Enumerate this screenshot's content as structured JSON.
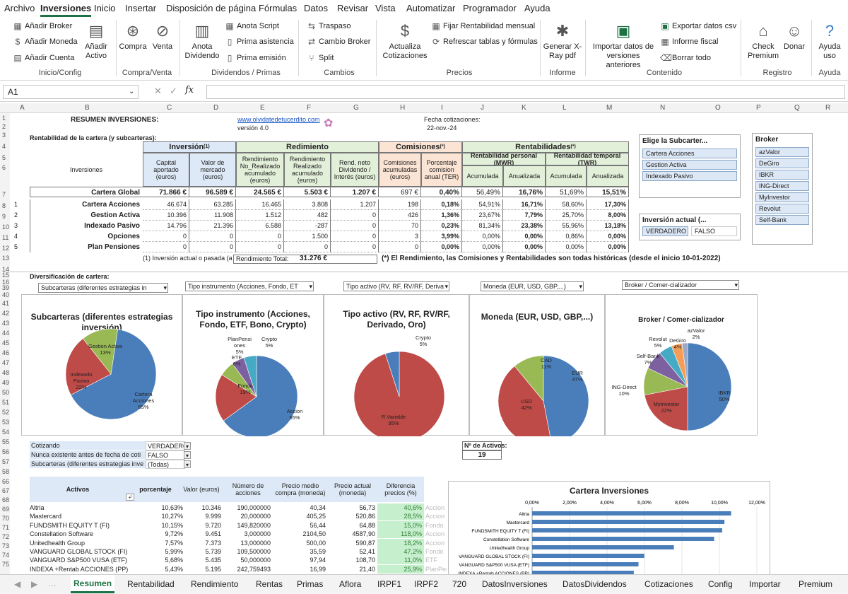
{
  "menu": [
    "Archivo",
    "Inversiones",
    "Inicio",
    "Insertar",
    "Disposición de página",
    "Fórmulas",
    "Datos",
    "Revisar",
    "Vista",
    "Automatizar",
    "Programador",
    "Ayuda"
  ],
  "ribbon": {
    "anadir_broker": "Añadir Broker",
    "anadir_moneda": "Añadir Moneda",
    "anadir_cuenta": "Añadir Cuenta",
    "anadir_activo": "Añadir Activo",
    "g_inicio": "Inicio/Config",
    "compra": "Compra",
    "venta": "Venta",
    "g_compraventa": "Compra/Venta",
    "anota_dividendo": "Anota Dividendo",
    "anota_script": "Anota Script",
    "prima_asistencia": "Prima asistencia",
    "prima_emision": "Prima emisión",
    "g_dividendos": "Dividendos / Primas",
    "traspaso": "Traspaso",
    "cambio_broker": "Cambio Broker",
    "split": "Split",
    "g_cambios": "Cambios",
    "actualiza": "Actualiza Cotizaciones",
    "fijar": "Fijar Rentabilidad mensual",
    "refrescar": "Refrescar tablas y fórmulas",
    "g_precios": "Precios",
    "generar": "Generar X-Ray pdf",
    "g_informe": "Informe",
    "importar": "Importar datos de versiones anteriores",
    "exportar": "Exportar datos csv",
    "informe_fiscal": "Informe fiscal",
    "borrar": "Borrar todo",
    "g_contenido": "Contenido",
    "check": "Check Premium",
    "donar": "Donar",
    "g_registro": "Registro",
    "ayuda": "Ayuda uso",
    "g_ayuda": "Ayuda"
  },
  "namebox": "A1",
  "columns": [
    "A",
    "B",
    "C",
    "D",
    "E",
    "F",
    "G",
    "H",
    "I",
    "J",
    "K",
    "L",
    "M",
    "N",
    "O",
    "P",
    "Q",
    "R"
  ],
  "rows": [
    "1",
    "2",
    "3",
    "4",
    "5",
    "6",
    "7",
    "8",
    "9",
    "10",
    "11",
    "12",
    "13",
    "14",
    "15",
    "16",
    "39",
    "40",
    "41",
    "42",
    "43",
    "44",
    "45",
    "46",
    "47",
    "48",
    "49",
    "50",
    "51",
    "52",
    "53",
    "54",
    "55",
    "56",
    "57",
    "58",
    "59",
    "60",
    "61",
    "62",
    "63",
    "64"
  ],
  "summary": {
    "title": "RESUMEN INVERSIONES:",
    "site": "www.olvidatedetucerdito.com",
    "version": "versión 4.0",
    "fecha_label": "Fecha cotizaciones:",
    "fecha": "22-nov.-24",
    "rent_label": "Rentabilidad de la cartera (y subcarteras):",
    "h_inversion": "Inversión",
    "h_rendimiento": "Redimiento",
    "h_comisiones": "Comisiones",
    "h_rentab": "Rentabilidades",
    "sup1": "(1)",
    "sup2": "(*)",
    "h_inversiones": "Inversiones",
    "c_capital": "Capital aportado (euros)",
    "c_valor": "Valor de mercado (euros)",
    "c_rnr": "Rendimiento No_Realizado acumulado (euros)",
    "c_rr": "Rendimiento Realizado acumulado (euros)",
    "c_div": "Rend. neto Dividendo / Interés (euros)",
    "c_com": "Comisiones acumuladas (euros)",
    "c_pct": "Porcentaje comision anual (TER)",
    "h_mwr": "Rentabilidad personal (MWR)",
    "h_twr": "Rentabilidad temporal (TWR)",
    "c_acum": "Acumulada",
    "c_anual": "Anualizada",
    "rows": [
      {
        "n": "",
        "name": "Cartera Global",
        "cap": "71.866 €",
        "val": "96.589 €",
        "rnr": "24.565 €",
        "rr": "5.503 €",
        "div": "1.207 €",
        "com": "697 €",
        "ter": "0,40%",
        "ma": "56,49%",
        "mn": "16,76%",
        "ta": "51,69%",
        "tn": "15,51%"
      },
      {
        "n": "1",
        "name": "Cartera Acciones",
        "cap": "46.674",
        "val": "63.285",
        "rnr": "16.465",
        "rr": "3.808",
        "div": "1.207",
        "com": "198",
        "ter": "0,18%",
        "ma": "54,91%",
        "mn": "16,71%",
        "ta": "58,60%",
        "tn": "17,30%"
      },
      {
        "n": "2",
        "name": "Gestion Activa",
        "cap": "10.396",
        "val": "11.908",
        "rnr": "1.512",
        "rr": "482",
        "div": "0",
        "com": "426",
        "ter": "1,36%",
        "ma": "23,67%",
        "mn": "7,79%",
        "ta": "25,70%",
        "tn": "8,00%"
      },
      {
        "n": "3",
        "name": "Indexado Pasivo",
        "cap": "14.796",
        "val": "21.396",
        "rnr": "6.588",
        "rr": "-287",
        "div": "0",
        "com": "70",
        "ter": "0,23%",
        "ma": "81,34%",
        "mn": "23,38%",
        "ta": "55,96%",
        "tn": "13,18%"
      },
      {
        "n": "4",
        "name": "Opciones",
        "cap": "0",
        "val": "0",
        "rnr": "0",
        "rr": "1.500",
        "div": "0",
        "com": "3",
        "ter": "3,99%",
        "ma": "0,00%",
        "mn": "0,00%",
        "ta": "0,86%",
        "tn": "0,00%"
      },
      {
        "n": "5",
        "name": "Plan Pensiones",
        "cap": "0",
        "val": "0",
        "rnr": "0",
        "rr": "0",
        "div": "0",
        "com": "0",
        "ter": "0,00%",
        "ma": "0,00%",
        "mn": "0,00%",
        "ta": "0,00%",
        "tn": "0,00%"
      }
    ],
    "note1": "(1) Inversión actual o pasada (a",
    "rend_total_label": "Rendimiento Total:",
    "rend_total": "31.276 €",
    "note2": "(*) El Rendimiento, las Comisiones y Rentabilidades son todas históricas (desde el inicio 10-01-2022)"
  },
  "slicer_sub": {
    "title": "Elige la Subcarter...",
    "items": [
      "Cartera Acciones",
      "Gestion Activa",
      "Indexado Pasivo"
    ]
  },
  "slicer_broker": {
    "title": "Broker",
    "items": [
      "azValor",
      "DeGiro",
      "IBKR",
      "ING-Direct",
      "MyInvestor",
      "Revolut",
      "Self-Bank"
    ]
  },
  "slicer_inv": {
    "title": "Inversión actual (...",
    "items": [
      "VERDADERO",
      "FALSO"
    ]
  },
  "divers": {
    "label": "Diversificación de cartera:",
    "dd": [
      "Subcarteras (diferentes estrategias in",
      "Tipo instrumento (Acciones, Fondo, ET",
      "Tipo activo (RV, RF, RV/RF, Deriva",
      "Moneda (EUR, USD, GBP,...)",
      "Broker / Comer-cializador"
    ]
  },
  "charts": [
    {
      "title": "Subcarteras (diferentes estrategias inversión)",
      "slices": [
        {
          "label": "Cartera Acciones",
          "value": 65,
          "color": "#4a7ebb"
        },
        {
          "label": "Indexado Pasivo",
          "value": 22,
          "color": "#be4b48"
        },
        {
          "label": "Gestion Activa",
          "value": 13,
          "color": "#98b954"
        }
      ]
    },
    {
      "title": "Tipo instrumento (Acciones, Fondo, ETF, Bono, Crypto)",
      "slices": [
        {
          "label": "Accion",
          "value": 65,
          "color": "#4a7ebb"
        },
        {
          "label": "Fondo",
          "value": 19,
          "color": "#be4b48"
        },
        {
          "label": "ETF",
          "value": 6,
          "color": "#98b954"
        },
        {
          "label": "PlanPensiones",
          "value": 5,
          "color": "#7d60a0"
        },
        {
          "label": "Crypto",
          "value": 5,
          "color": "#46aac4"
        }
      ]
    },
    {
      "title": "Tipo activo (RV, RF, RV/RF, Derivado, Oro)",
      "slices": [
        {
          "label": "R.Variable",
          "value": 95,
          "color": "#be4b48"
        },
        {
          "label": "Crypto",
          "value": 5,
          "color": "#4a7ebb"
        }
      ]
    },
    {
      "title": "Moneda (EUR, USD, GBP,...)",
      "slices": [
        {
          "label": "EUR",
          "value": 47,
          "color": "#4a7ebb"
        },
        {
          "label": "USD",
          "value": 42,
          "color": "#be4b48"
        },
        {
          "label": "CAD",
          "value": 11,
          "color": "#98b954"
        }
      ]
    },
    {
      "title": "Broker / Comer-cializador",
      "slices": [
        {
          "label": "IBKR",
          "value": 50,
          "color": "#4a7ebb"
        },
        {
          "label": "MyInvestor",
          "value": 22,
          "color": "#be4b48"
        },
        {
          "label": "ING-Direct",
          "value": 10,
          "color": "#98b954"
        },
        {
          "label": "Self-Bank",
          "value": 7,
          "color": "#7d60a0"
        },
        {
          "label": "Revolut",
          "value": 5,
          "color": "#46aac4"
        },
        {
          "label": "DeGiro",
          "value": 4,
          "color": "#f59d56"
        },
        {
          "label": "azValor",
          "value": 2,
          "color": "#9aa9c8"
        }
      ]
    }
  ],
  "chart_labels": [
    [
      "Cartera Acciones 65%",
      "Indexado Pasivo 22%",
      "Gestion Activa 13%"
    ],
    [
      "Accion 65%",
      "Fondo 19%",
      "ETF 6%",
      "PlanPensi ones 5%",
      "Crypto 5%"
    ],
    [
      "R.Variable 95%",
      "Crypto 5%"
    ],
    [
      "EUR 47%",
      "USD 42%",
      "CAD 11%"
    ],
    [
      "IBKR 50%",
      "MyInvestor 22%",
      "ING-Direct 10%",
      "Self-Bank 7%",
      "Revolut 5%",
      "DeGiro 4%",
      "azValor 2%"
    ]
  ],
  "filters": [
    {
      "k": "Cotizando",
      "v": "VERDADERO"
    },
    {
      "k": "Nunca existente antes de fecha de coti",
      "v": "FALSO"
    },
    {
      "k": "Subcarteras (diferentes estrategias inve",
      "v": "(Todas)"
    }
  ],
  "nactivos": {
    "label": "Nº de Activos:",
    "value": "19"
  },
  "assets": {
    "h": [
      "Activos",
      "porcentaje",
      "Valor (euros)",
      "Número de acciones",
      "Precio medio compra (moneda)",
      "Precio actual (moneda)",
      "Diferencia precios (%)"
    ],
    "rows": [
      [
        "Altria",
        "10,63%",
        "10.346",
        "190,000000",
        "40,34",
        "56,73",
        "40,6%",
        "Accion"
      ],
      [
        "Mastercard",
        "10,27%",
        "9.999",
        "20,000000",
        "405,25",
        "520,86",
        "28,5%",
        "Accion"
      ],
      [
        "FUNDSMITH EQUITY T (FI)",
        "10,15%",
        "9.720",
        "149,820000",
        "56,44",
        "64,88",
        "15,0%",
        "Fondo"
      ],
      [
        "Constellation Software",
        "9,72%",
        "9.451",
        "3,000000",
        "2104,50",
        "4587,90",
        "118,0%",
        "Accion"
      ],
      [
        "Unitedhealth Group",
        "7,57%",
        "7.373",
        "13,000000",
        "500,00",
        "590,87",
        "18,2%",
        "Accion"
      ],
      [
        "VANGUARD GLOBAL STOCK (FI)",
        "5,99%",
        "5.739",
        "109,500000",
        "35,59",
        "52,41",
        "47,2%",
        "Fondo"
      ],
      [
        "VANGUARD S&P500 VUSA (ETF)",
        "5,68%",
        "5.435",
        "50,000000",
        "97,94",
        "108,70",
        "11,0%",
        "ETF"
      ],
      [
        "INDEXA +Rentab ACCIONES (PP)",
        "5,43%",
        "5.195",
        "242,759493",
        "16,99",
        "21,40",
        "25,9%",
        "PlanPen"
      ]
    ]
  },
  "chart_data": {
    "type": "bar",
    "title": "Cartera Inversiones",
    "categories": [
      "Altria",
      "Mastercard",
      "FUNDSMITH EQUITY T (FI)",
      "Constellation Software",
      "Unitedhealth Group",
      "VANGUARD GLOBAL STOCK (FI)",
      "VANGUARD S&P500 VUSA (ETF)",
      "INDEXA +Rentab ACCIONES (PP)"
    ],
    "values": [
      10.63,
      10.27,
      10.15,
      9.72,
      7.57,
      5.99,
      5.68,
      5.43
    ],
    "xticks": [
      "0,00%",
      "2,00%",
      "4,00%",
      "6,00%",
      "8,00%",
      "10,00%",
      "12,00%"
    ],
    "xlim": [
      0,
      12
    ],
    "orientation": "horizontal",
    "color": "#4a7ebb"
  },
  "tabs": [
    "Resumen",
    "Rentabilidad",
    "Rendimiento",
    "Rentas",
    "Primas",
    "Aflora",
    "IRPF1",
    "IRPF2",
    "720",
    "DatosInversiones",
    "DatosDividendos",
    "Cotizaciones",
    "Config",
    "Importar",
    "Premium"
  ]
}
